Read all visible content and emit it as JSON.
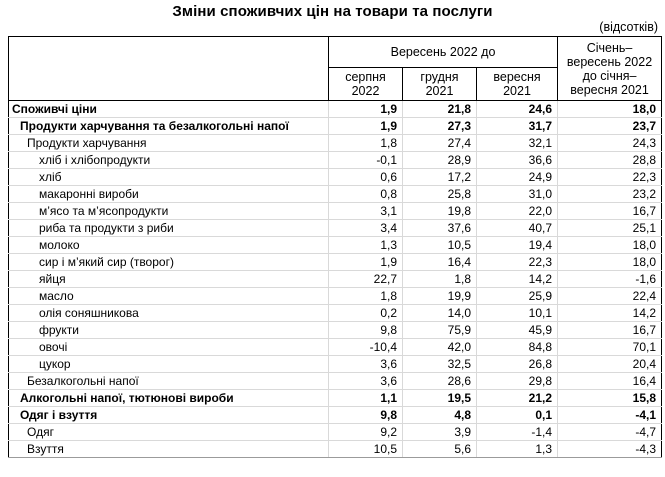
{
  "title": "Зміни споживчих цін на товари та послуги",
  "unit_note": "(відсотків)",
  "table": {
    "header": {
      "group_label": "Вересень 2022 до",
      "sub_columns": [
        "серпня 2022",
        "грудня 2021",
        "вересня 2021"
      ],
      "last_column": "Січень–вересень 2022 до січня–вересня 2021"
    },
    "rows": [
      {
        "label": "Споживчі ціни",
        "indent": 0,
        "bold": true,
        "values": [
          "1,9",
          "21,8",
          "24,6",
          "18,0"
        ]
      },
      {
        "label": "Продукти харчування та безалкогольні напої",
        "indent": 1,
        "bold": true,
        "values": [
          "1,9",
          "27,3",
          "31,7",
          "23,7"
        ]
      },
      {
        "label": "Продукти харчування",
        "indent": 2,
        "bold": false,
        "values": [
          "1,8",
          "27,4",
          "32,1",
          "24,3"
        ]
      },
      {
        "label": "хліб і хлібопродукти",
        "indent": 3,
        "bold": false,
        "values": [
          "-0,1",
          "28,9",
          "36,6",
          "28,8"
        ]
      },
      {
        "label": "хліб",
        "indent": 3,
        "bold": false,
        "values": [
          "0,6",
          "17,2",
          "24,9",
          "22,3"
        ]
      },
      {
        "label": "макаронні вироби",
        "indent": 3,
        "bold": false,
        "values": [
          "0,8",
          "25,8",
          "31,0",
          "23,2"
        ]
      },
      {
        "label": "м’ясо та м’ясопродукти",
        "indent": 3,
        "bold": false,
        "values": [
          "3,1",
          "19,8",
          "22,0",
          "16,7"
        ]
      },
      {
        "label": "риба та продукти з риби",
        "indent": 3,
        "bold": false,
        "values": [
          "3,4",
          "37,6",
          "40,7",
          "25,1"
        ]
      },
      {
        "label": "молоко",
        "indent": 3,
        "bold": false,
        "values": [
          "1,3",
          "10,5",
          "19,4",
          "18,0"
        ]
      },
      {
        "label": "сир і м’який сир (творог)",
        "indent": 3,
        "bold": false,
        "values": [
          "1,9",
          "16,4",
          "22,3",
          "18,0"
        ]
      },
      {
        "label": "яйця",
        "indent": 3,
        "bold": false,
        "values": [
          "22,7",
          "1,8",
          "14,2",
          "-1,6"
        ]
      },
      {
        "label": "масло",
        "indent": 3,
        "bold": false,
        "values": [
          "1,8",
          "19,9",
          "25,9",
          "22,4"
        ]
      },
      {
        "label": "олія соняшникова",
        "indent": 3,
        "bold": false,
        "values": [
          "0,2",
          "14,0",
          "10,1",
          "14,2"
        ]
      },
      {
        "label": "фрукти",
        "indent": 3,
        "bold": false,
        "values": [
          "9,8",
          "75,9",
          "45,9",
          "16,7"
        ]
      },
      {
        "label": "овочі",
        "indent": 3,
        "bold": false,
        "values": [
          "-10,4",
          "42,0",
          "84,8",
          "70,1"
        ]
      },
      {
        "label": "цукор",
        "indent": 3,
        "bold": false,
        "values": [
          "3,6",
          "32,5",
          "26,8",
          "20,4"
        ]
      },
      {
        "label": "Безалкогольні напої",
        "indent": 2,
        "bold": false,
        "values": [
          "3,6",
          "28,6",
          "29,8",
          "16,4"
        ]
      },
      {
        "label": "Алкогольні напої, тютюнові вироби",
        "indent": 1,
        "bold": true,
        "values": [
          "1,1",
          "19,5",
          "21,2",
          "15,8"
        ]
      },
      {
        "label": "Одяг і взуття",
        "indent": 1,
        "bold": true,
        "values": [
          "9,8",
          "4,8",
          "0,1",
          "-4,1"
        ]
      },
      {
        "label": "Одяг",
        "indent": 2,
        "bold": false,
        "values": [
          "9,2",
          "3,9",
          "-1,4",
          "-4,7"
        ]
      },
      {
        "label": "Взуття",
        "indent": 2,
        "bold": false,
        "values": [
          "10,5",
          "5,6",
          "1,3",
          "-4,3"
        ]
      }
    ]
  },
  "chart_data": {
    "type": "table",
    "title": "Зміни споживчих цін на товари та послуги",
    "unit": "відсотків",
    "columns": [
      "Вересень 2022 до серпня 2022",
      "Вересень 2022 до грудня 2021",
      "Вересень 2022 до вересня 2021",
      "Січень–вересень 2022 до січня–вересня 2021"
    ],
    "categories": [
      "Споживчі ціни",
      "Продукти харчування та безалкогольні напої",
      "Продукти харчування",
      "хліб і хлібопродукти",
      "хліб",
      "макаронні вироби",
      "м’ясо та м’ясопродукти",
      "риба та продукти з риби",
      "молоко",
      "сир і м’який сир (творог)",
      "яйця",
      "масло",
      "олія соняшникова",
      "фрукти",
      "овочі",
      "цукор",
      "Безалкогольні напої",
      "Алкогольні напої, тютюнові вироби",
      "Одяг і взуття",
      "Одяг",
      "Взуття"
    ],
    "series": [
      {
        "name": "Вересень 2022 до серпня 2022",
        "values": [
          1.9,
          1.9,
          1.8,
          -0.1,
          0.6,
          0.8,
          3.1,
          3.4,
          1.3,
          1.9,
          22.7,
          1.8,
          0.2,
          9.8,
          -10.4,
          3.6,
          3.6,
          1.1,
          9.8,
          9.2,
          10.5
        ]
      },
      {
        "name": "Вересень 2022 до грудня 2021",
        "values": [
          21.8,
          27.3,
          27.4,
          28.9,
          17.2,
          25.8,
          19.8,
          37.6,
          10.5,
          16.4,
          1.8,
          19.9,
          14.0,
          75.9,
          42.0,
          32.5,
          28.6,
          19.5,
          4.8,
          3.9,
          5.6
        ]
      },
      {
        "name": "Вересень 2022 до вересня 2021",
        "values": [
          24.6,
          31.7,
          32.1,
          36.6,
          24.9,
          31.0,
          22.0,
          40.7,
          19.4,
          22.3,
          14.2,
          25.9,
          10.1,
          45.9,
          84.8,
          26.8,
          29.8,
          21.2,
          0.1,
          -1.4,
          1.3
        ]
      },
      {
        "name": "Січень–вересень 2022 до січня–вересня 2021",
        "values": [
          18.0,
          23.7,
          24.3,
          28.8,
          22.3,
          23.2,
          16.7,
          25.1,
          18.0,
          18.0,
          -1.6,
          22.4,
          14.2,
          16.7,
          70.1,
          20.4,
          16.4,
          15.8,
          -4.1,
          -4.7,
          -4.3
        ]
      }
    ]
  }
}
